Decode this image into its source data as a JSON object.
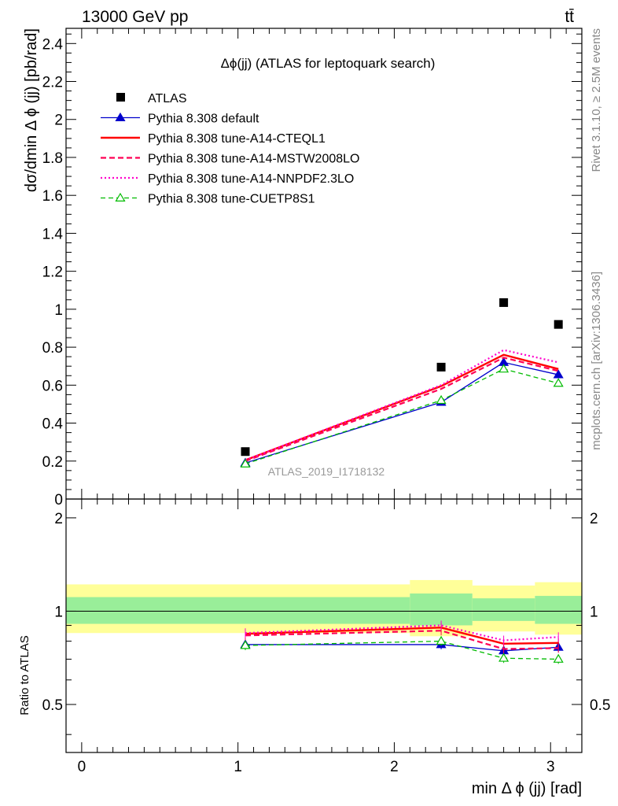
{
  "header": {
    "left": "13000 GeV pp",
    "right": "tt̄"
  },
  "side_labels": {
    "rivet": "Rivet 3.1.10, ≥ 2.5M events",
    "mcplots": "mcplots.cern.ch [arXiv:1306.3436]"
  },
  "chart_data": [
    {
      "type": "line",
      "title": "Δϕ(jj) (ATLAS for leptoquark search)",
      "xlabel": "min Δ ϕ (jj) [rad]",
      "ylabel": "dσ/dmin Δ ϕ (jj) [pb/rad]",
      "analysis_label": "ATLAS_2019_I1718132",
      "xlim": [
        -0.1,
        3.2
      ],
      "ylim": [
        0,
        2.48
      ],
      "x_ticks": [
        "0",
        "1",
        "2",
        "3"
      ],
      "y_ticks": [
        "0",
        "0.2",
        "0.4",
        "0.6",
        "0.8",
        "1",
        "1.2",
        "1.4",
        "1.6",
        "1.8",
        "2",
        "2.2",
        "2.4"
      ],
      "x": [
        1.047,
        2.3,
        2.7,
        3.05
      ],
      "data": {
        "name": "ATLAS",
        "values": [
          0.25,
          0.695,
          1.035,
          0.92
        ],
        "bins": [
          [
            -0.1,
            2.1
          ],
          [
            2.1,
            2.5
          ],
          [
            2.5,
            2.9
          ],
          [
            2.9,
            3.2
          ]
        ]
      },
      "series": [
        {
          "name": "Pythia 8.308 default",
          "values": [
            0.19,
            0.51,
            0.72,
            0.655
          ],
          "color": "#0000cc"
        },
        {
          "name": "Pythia 8.308 tune-A14-CTEQL1",
          "values": [
            0.205,
            0.595,
            0.76,
            0.685
          ],
          "color": "#ff0000"
        },
        {
          "name": "Pythia 8.308 tune-A14-MSTW2008LO",
          "values": [
            0.2,
            0.58,
            0.745,
            0.675
          ],
          "color": "#ff0055"
        },
        {
          "name": "Pythia 8.308 tune-A14-NNPDF2.3LO",
          "values": [
            0.205,
            0.6,
            0.785,
            0.72
          ],
          "color": "#ff00cc"
        },
        {
          "name": "Pythia 8.308 tune-CUETP8S1",
          "values": [
            0.185,
            0.52,
            0.685,
            0.61
          ],
          "color": "#00bb00"
        }
      ],
      "legend_placement": "top-left"
    },
    {
      "type": "line",
      "ylabel": "Ratio to ATLAS",
      "ylim": [
        0.35,
        2.3
      ],
      "y_ticks": [
        "0.5",
        "1",
        "2"
      ],
      "x": [
        1.047,
        2.3,
        2.7,
        3.05
      ],
      "bands": [
        {
          "x": [
            -0.1,
            2.1
          ],
          "stat": [
            0.91,
            1.11
          ],
          "total": [
            0.85,
            1.22
          ]
        },
        {
          "x": [
            2.1,
            2.5
          ],
          "stat": [
            0.9,
            1.14
          ],
          "total": [
            0.83,
            1.26
          ]
        },
        {
          "x": [
            2.5,
            2.9
          ],
          "stat": [
            0.93,
            1.1
          ],
          "total": [
            0.86,
            1.21
          ]
        },
        {
          "x": [
            2.9,
            3.2
          ],
          "stat": [
            0.91,
            1.12
          ],
          "total": [
            0.84,
            1.24
          ]
        }
      ],
      "series": [
        {
          "name": "Pythia 8.308 default",
          "values": [
            0.78,
            0.78,
            0.745,
            0.765
          ]
        },
        {
          "name": "Pythia 8.308 tune-A14-CTEQL1",
          "values": [
            0.845,
            0.885,
            0.785,
            0.79
          ]
        },
        {
          "name": "Pythia 8.308 tune-A14-MSTW2008LO",
          "values": [
            0.835,
            0.865,
            0.755,
            0.76
          ]
        },
        {
          "name": "Pythia 8.308 tune-A14-NNPDF2.3LO",
          "values": [
            0.85,
            0.9,
            0.805,
            0.825
          ]
        },
        {
          "name": "Pythia 8.308 tune-CUETP8S1",
          "values": [
            0.775,
            0.8,
            0.705,
            0.7
          ]
        }
      ]
    }
  ]
}
